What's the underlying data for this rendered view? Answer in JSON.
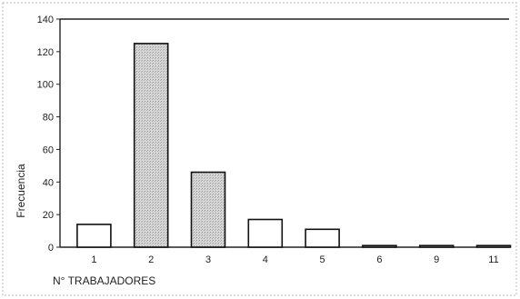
{
  "chart_data": {
    "type": "bar",
    "categories": [
      "1",
      "2",
      "3",
      "4",
      "5",
      "6",
      "9",
      "11"
    ],
    "values": [
      14,
      125,
      46,
      17,
      11,
      1,
      1,
      1
    ],
    "shaded": [
      false,
      true,
      true,
      false,
      false,
      false,
      false,
      false
    ],
    "ylabel": "Frecuencia",
    "xlabel": "N° TRABAJADORES",
    "ylim": [
      0,
      140
    ],
    "yticks": [
      0,
      20,
      40,
      60,
      80,
      100,
      120,
      140
    ],
    "grid": false,
    "legend": "none"
  },
  "colors": {
    "bar_fill": "#ffffff",
    "bar_shaded": "#c8c8c8",
    "stroke": "#111111"
  }
}
